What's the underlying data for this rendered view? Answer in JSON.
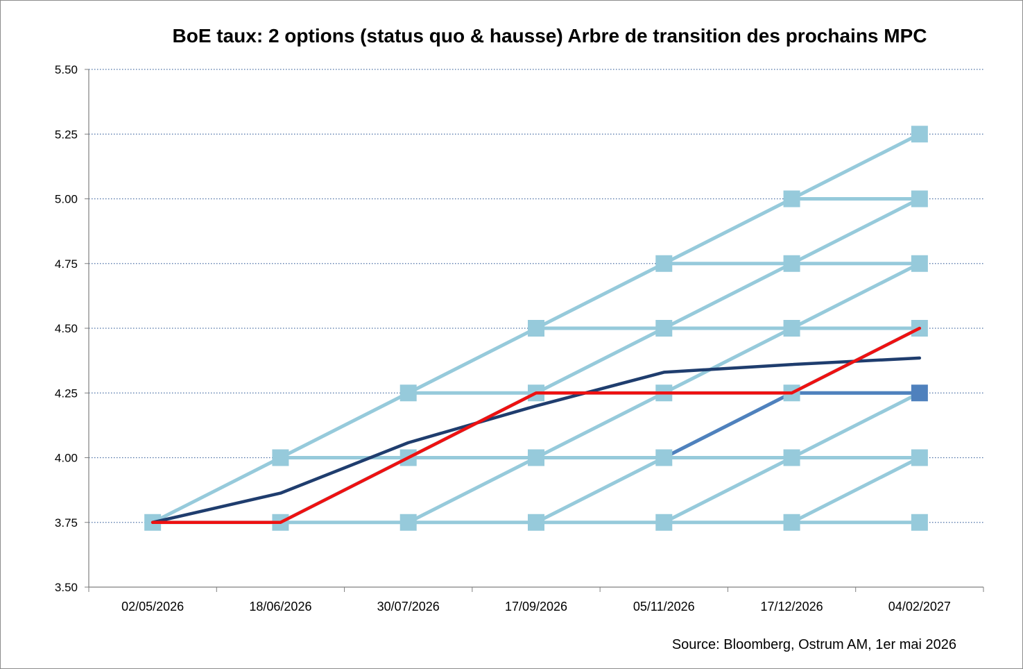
{
  "chart_data": {
    "type": "line",
    "title": "BoE taux: 2 options (status quo & hausse) Arbre de transition des prochains MPC",
    "source": "Source: Bloomberg, Ostrum AM, 1er mai 2026",
    "categories": [
      "02/05/2026",
      "18/06/2026",
      "30/07/2026",
      "17/09/2026",
      "05/11/2026",
      "17/12/2026",
      "04/02/2027"
    ],
    "yticks": [
      "3.50",
      "3.75",
      "4.00",
      "4.25",
      "4.50",
      "4.75",
      "5.00",
      "5.25",
      "5.50"
    ],
    "ylim": [
      3.5,
      5.5
    ],
    "grid": true,
    "colors": {
      "tree": "#96cadb",
      "tree_highlight": "#4f81bd",
      "expected": "#1f3d6e",
      "realised": "#ee1111"
    },
    "tree_nodes": [
      [
        3.75
      ],
      [
        3.75,
        4.0
      ],
      [
        3.75,
        4.0,
        4.25
      ],
      [
        3.75,
        4.0,
        4.25,
        4.5
      ],
      [
        3.75,
        4.0,
        4.25,
        4.5,
        4.75
      ],
      [
        3.75,
        4.0,
        4.25,
        4.5,
        4.75,
        5.0
      ],
      [
        3.75,
        4.0,
        4.25,
        4.5,
        4.75,
        5.0,
        5.25
      ]
    ],
    "highlight_path": {
      "x": [
        4,
        5,
        6
      ],
      "y": [
        4.0,
        4.25,
        4.25
      ]
    },
    "series": [
      {
        "values": [
          3.75,
          3.863,
          4.058,
          4.2,
          4.33,
          4.36,
          4.385
        ]
      },
      {
        "values": [
          3.75,
          3.75,
          4.0,
          4.25,
          4.25,
          4.25,
          4.5
        ]
      }
    ]
  }
}
